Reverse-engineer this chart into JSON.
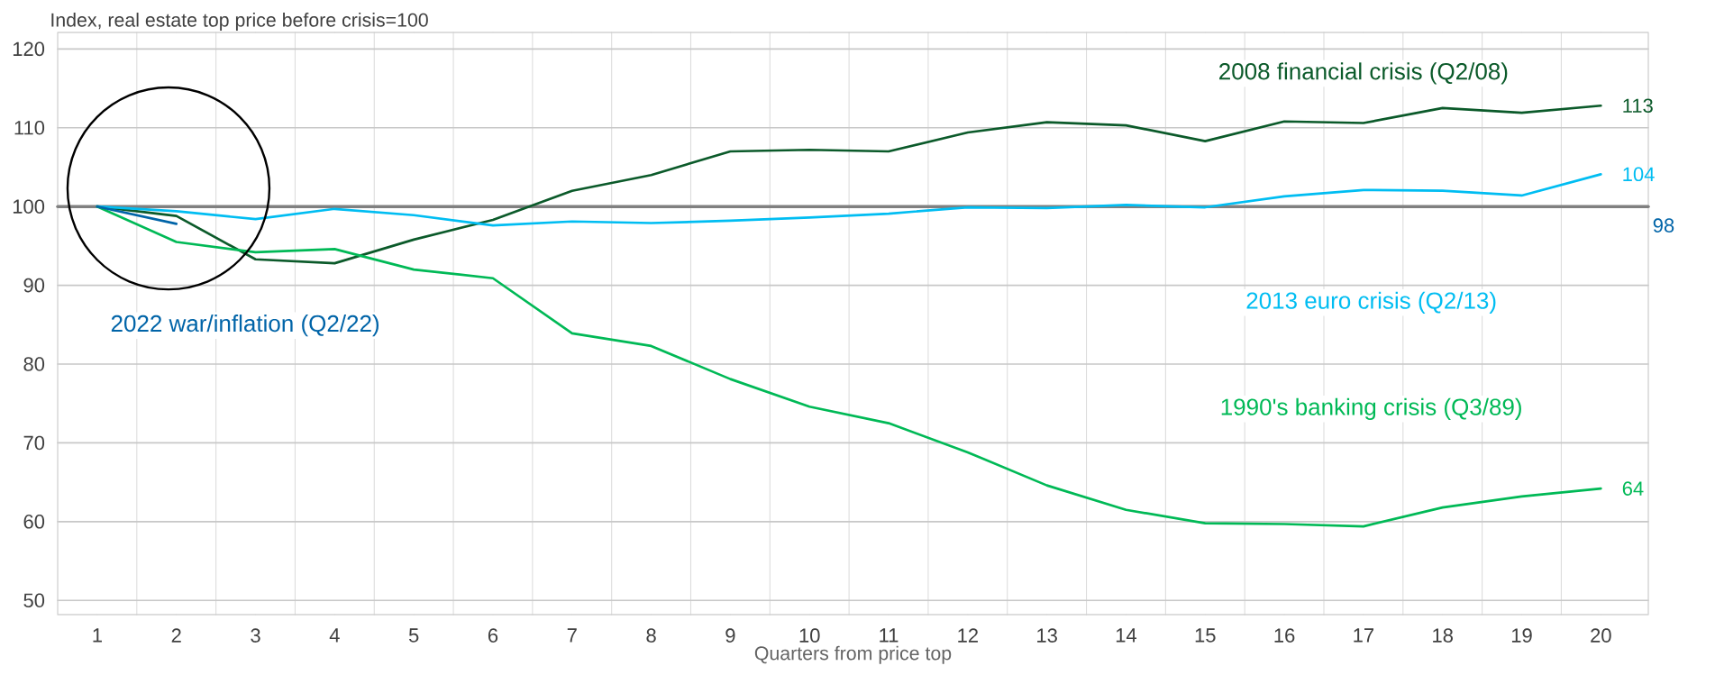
{
  "chart_data": {
    "type": "line",
    "ylabel": "Index, real estate top price before crisis=100",
    "xlabel": "Quarters from price top",
    "x": [
      1,
      2,
      3,
      4,
      5,
      6,
      7,
      8,
      9,
      10,
      11,
      12,
      13,
      14,
      15,
      16,
      17,
      18,
      19,
      20
    ],
    "series": [
      {
        "name": "2008 financial crisis (Q2/08)",
        "color": "#0b5a2a",
        "values": [
          100,
          98.8,
          93.3,
          92.8,
          95.8,
          98.3,
          102,
          104,
          107,
          107.2,
          107,
          109.4,
          110.7,
          110.3,
          108.3,
          110.8,
          110.6,
          112.5,
          111.9,
          112.8
        ],
        "value_labels": [
          null,
          null,
          null,
          null,
          null,
          null,
          null,
          null,
          null,
          null,
          null,
          null,
          null,
          null,
          null,
          null,
          null,
          null,
          null,
          "113"
        ]
      },
      {
        "name": "2013 euro crisis (Q2/13)",
        "color": "#00bdf2",
        "values": [
          100,
          99.4,
          98.4,
          99.7,
          98.9,
          97.6,
          98.1,
          97.9,
          98.2,
          98.6,
          99.1,
          99.9,
          99.8,
          100.2,
          99.9,
          101.3,
          102.1,
          102,
          101.4,
          104.1
        ],
        "value_labels": [
          null,
          null,
          null,
          null,
          null,
          null,
          null,
          null,
          null,
          null,
          null,
          null,
          null,
          null,
          null,
          null,
          null,
          null,
          null,
          "104"
        ]
      },
      {
        "name": "1990's banking crisis (Q3/89)",
        "color": "#00b956",
        "values": [
          100,
          95.5,
          94.2,
          94.6,
          92,
          90.9,
          83.9,
          82.3,
          78.1,
          74.6,
          72.5,
          68.8,
          64.6,
          61.5,
          59.8,
          59.7,
          59.4,
          61.8,
          63.2,
          64.2
        ],
        "value_labels": [
          null,
          null,
          null,
          null,
          null,
          null,
          null,
          null,
          null,
          null,
          null,
          null,
          null,
          null,
          null,
          null,
          null,
          null,
          null,
          "64"
        ]
      },
      {
        "name": "2022 war/inflation (Q2/22)",
        "color": "#0064a8",
        "x": [
          1,
          2
        ],
        "values": [
          100,
          97.8
        ]
      }
    ],
    "xlim": [
      0.5,
      20.6
    ],
    "xticks": [
      1,
      2,
      3,
      4,
      5,
      6,
      7,
      8,
      9,
      10,
      11,
      12,
      13,
      14,
      15,
      16,
      17,
      18,
      19,
      20
    ],
    "ylim": [
      48.2,
      122.1
    ],
    "yticks": [
      50,
      60,
      70,
      80,
      90,
      100,
      110,
      120
    ],
    "annotations": [
      "98"
    ],
    "grid": true,
    "marker": "none",
    "line_style": "solid",
    "ref_lines": [
      {
        "axis": "y",
        "value": 100,
        "color": "#808080"
      }
    ]
  }
}
